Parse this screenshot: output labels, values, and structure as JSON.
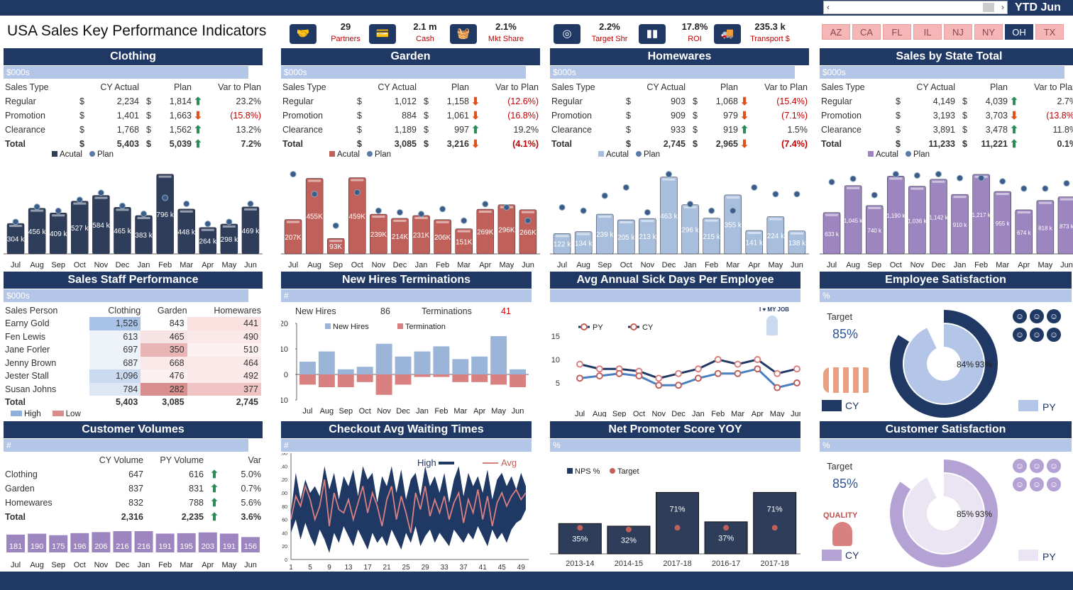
{
  "title": "USA Sales Key Performance Indicators",
  "period": "YTD Jun",
  "kpis": [
    {
      "value": "29",
      "label": "Partners",
      "icon": "handshake-icon"
    },
    {
      "value": "2.1 m",
      "label": "Cash",
      "icon": "bank-card-icon"
    },
    {
      "value": "2.1%",
      "label": "Mkt Share",
      "icon": "basket-icon"
    },
    {
      "value": "2.2%",
      "label": "Target Shr",
      "icon": "target-icon"
    },
    {
      "value": "17.8%",
      "label": "ROI",
      "icon": "bar-icon"
    },
    {
      "value": "235.3 k",
      "label": "Transport $",
      "icon": "truck-icon"
    }
  ],
  "states": [
    "AZ",
    "CA",
    "FL",
    "IL",
    "NJ",
    "NY",
    "OH",
    "TX"
  ],
  "selected_state": "OH",
  "months": [
    "Jul",
    "Aug",
    "Sep",
    "Oct",
    "Nov",
    "Dec",
    "Jan",
    "Feb",
    "Mar",
    "Apr",
    "May",
    "Jun"
  ],
  "unit_k": "$000s",
  "unit_n": "#",
  "unit_p": "%",
  "sales_cols": {
    "type": "Sales Type",
    "actual": "CY Actual",
    "plan": "Plan",
    "var": "Var to Plan",
    "cur": "$"
  },
  "legend": {
    "actual": "Acutal",
    "plan": "Plan"
  },
  "panels": [
    {
      "name": "Clothing",
      "color": "#2e3d5a",
      "rows": [
        {
          "t": "Regular",
          "a": "2,234",
          "p": "1,814",
          "v": "23.2%",
          "d": "up"
        },
        {
          "t": "Promotion",
          "a": "1,401",
          "p": "1,663",
          "v": "(15.8%)",
          "d": "dn"
        },
        {
          "t": "Clearance",
          "a": "1,768",
          "p": "1,562",
          "v": "13.2%",
          "d": "up"
        },
        {
          "t": "Total",
          "a": "5,403",
          "p": "5,039",
          "v": "7.2%",
          "d": "up"
        }
      ],
      "bars": [
        304,
        456,
        409,
        527,
        584,
        465,
        383,
        796,
        448,
        264,
        298,
        469
      ],
      "plan": [
        320,
        470,
        430,
        540,
        610,
        480,
        400,
        560,
        500,
        300,
        320,
        500
      ],
      "labels": [
        "304 k",
        "456 k",
        "409 k",
        "527 k",
        "584 k",
        "465 k",
        "383 k",
        "796 k",
        "448 k",
        "264 k",
        "298 k",
        "469 k"
      ]
    },
    {
      "name": "Garden",
      "color": "#c0605a",
      "rows": [
        {
          "t": "Regular",
          "a": "1,012",
          "p": "1,158",
          "v": "(12.6%)",
          "d": "dn"
        },
        {
          "t": "Promotion",
          "a": "884",
          "p": "1,061",
          "v": "(16.8%)",
          "d": "dn"
        },
        {
          "t": "Clearance",
          "a": "1,189",
          "p": "997",
          "v": "19.2%",
          "d": "up"
        },
        {
          "t": "Total",
          "a": "3,085",
          "p": "3,216",
          "v": "(4.1%)",
          "d": "dn"
        }
      ],
      "bars": [
        207,
        455,
        93,
        459,
        239,
        214,
        231,
        206,
        151,
        269,
        296,
        266
      ],
      "plan": [
        480,
        360,
        170,
        370,
        260,
        250,
        240,
        270,
        200,
        300,
        280,
        200
      ],
      "labels": [
        "207K",
        "455K",
        "93K",
        "459K",
        "239K",
        "214K",
        "231K",
        "206K",
        "151K",
        "269K",
        "296K",
        "266K"
      ]
    },
    {
      "name": "Homewares",
      "color": "#a7bfdc",
      "rows": [
        {
          "t": "Regular",
          "a": "903",
          "p": "1,068",
          "v": "(15.4%)",
          "d": "dn"
        },
        {
          "t": "Promotion",
          "a": "909",
          "p": "979",
          "v": "(7.1%)",
          "d": "dn"
        },
        {
          "t": "Clearance",
          "a": "933",
          "p": "919",
          "v": "1.5%",
          "d": "up"
        },
        {
          "t": "Total",
          "a": "2,745",
          "p": "2,965",
          "v": "(7.4%)",
          "d": "dn"
        }
      ],
      "bars": [
        122,
        134,
        239,
        205,
        213,
        463,
        296,
        215,
        355,
        141,
        224,
        138
      ],
      "plan": [
        280,
        260,
        350,
        400,
        250,
        480,
        300,
        260,
        260,
        400,
        360,
        360
      ],
      "labels": [
        "122 k",
        "134 k",
        "239 k",
        "205 k",
        "213 k",
        "463 k",
        "296 k",
        "215 k",
        "355 k",
        "141 k",
        "224 k",
        "138 k"
      ]
    },
    {
      "name": "Sales by State Total",
      "color": "#9d86bf",
      "rows": [
        {
          "t": "Regular",
          "a": "4,149",
          "p": "4,039",
          "v": "2.7%",
          "d": "up"
        },
        {
          "t": "Promotion",
          "a": "3,193",
          "p": "3,703",
          "v": "(13.8%)",
          "d": "dn"
        },
        {
          "t": "Clearance",
          "a": "3,891",
          "p": "3,478",
          "v": "11.8%",
          "d": "up"
        },
        {
          "t": "Total",
          "a": "11,233",
          "p": "11,221",
          "v": "0.1%",
          "d": "up"
        }
      ],
      "bars": [
        633,
        1045,
        740,
        1190,
        1036,
        1142,
        910,
        1217,
        955,
        674,
        818,
        873
      ],
      "plan": [
        1100,
        1150,
        900,
        1220,
        1200,
        1220,
        1160,
        1160,
        1110,
        1000,
        1000,
        1080
      ],
      "labels": [
        "633 k",
        "1,045 k",
        "740 k",
        "1,190 k",
        "1,036 k",
        "1,142 k",
        "910 k",
        "1,217 k",
        "955 k",
        "674 k",
        "818 k",
        "873 k"
      ]
    }
  ],
  "staff": {
    "title": "Sales Staff Performance",
    "cols": [
      "Sales Person",
      "Clothing",
      "Garden",
      "Homewares"
    ],
    "rows": [
      [
        "Earny Gold",
        "1,526",
        "843",
        "441"
      ],
      [
        "Fen Lewis",
        "613",
        "465",
        "490"
      ],
      [
        "Jane Forler",
        "697",
        "350",
        "510"
      ],
      [
        "Jenny Brown",
        "687",
        "668",
        "464"
      ],
      [
        "Jester Stall",
        "1,096",
        "476",
        "492"
      ],
      [
        "Susan Johns",
        "784",
        "282",
        "377"
      ]
    ],
    "total": [
      "Total",
      "5,403",
      "3,085",
      "2,745"
    ],
    "high": "High",
    "low": "Low"
  },
  "hires": {
    "title": "New Hires Terminations",
    "new_label": "New Hires",
    "new_value": "86",
    "term_label": "Terminations",
    "term_value": "41",
    "legend_new": "New Hires",
    "legend_term": "Termination",
    "yticks": [
      "20",
      "10",
      "0",
      "-10"
    ],
    "new": [
      5,
      9,
      2,
      3,
      12,
      7,
      9,
      11,
      6,
      7,
      15,
      2
    ],
    "term": [
      -4,
      -5,
      -5,
      -3,
      -8,
      -4,
      -1,
      -1,
      -3,
      -3,
      -4,
      -5
    ]
  },
  "sick": {
    "title": "Avg Annual Sick Days Per Employee",
    "yticks": [
      "15",
      "10",
      "5"
    ],
    "legend_py": "PY",
    "legend_cy": "CY",
    "badge": "I ♥ MY JOB",
    "py": [
      9,
      8,
      8,
      7.5,
      6,
      7,
      8,
      10,
      9,
      10,
      7,
      8
    ],
    "cy": [
      6,
      6.5,
      7,
      6.5,
      4.5,
      4.5,
      6,
      7,
      7,
      8,
      4,
      5
    ]
  },
  "emp": {
    "title": "Employee Satisfaction",
    "target_label": "Target",
    "target": "85%",
    "cy_pct": "84%",
    "py_pct": "93%",
    "cy": "CY",
    "py": "PY",
    "cy_val": 84,
    "py_val": 93
  },
  "cust_vol": {
    "title": "Customer Volumes",
    "cols": [
      "CY Volume",
      "PY Volume",
      "Var"
    ],
    "rows": [
      [
        "Clothing",
        "647",
        "616",
        "5.0%"
      ],
      [
        "Garden",
        "837",
        "831",
        "0.7%"
      ],
      [
        "Homewares",
        "832",
        "788",
        "5.6%"
      ],
      [
        "Total",
        "2,316",
        "2,235",
        "3.6%"
      ]
    ],
    "bars": [
      181,
      190,
      175,
      196,
      206,
      216,
      216,
      191,
      195,
      203,
      191,
      156
    ]
  },
  "checkout": {
    "title": "Checkout Avg Waiting Times",
    "legend_high": "High",
    "legend_avg": "Avg",
    "yticks": [
      "160",
      "140",
      "120",
      "100",
      "80",
      "60",
      "40",
      "20",
      "0"
    ],
    "xticks": [
      "1",
      "5",
      "9",
      "13",
      "17",
      "21",
      "25",
      "29",
      "33",
      "37",
      "41",
      "45",
      "49"
    ],
    "high": [
      70,
      130,
      90,
      120,
      100,
      110,
      95,
      140,
      105,
      130,
      90,
      125,
      110,
      135,
      95,
      140,
      120,
      130,
      85,
      125,
      110,
      140,
      100,
      135,
      90,
      120,
      130,
      95,
      140,
      110,
      125,
      100,
      130,
      85,
      120,
      140,
      95,
      130,
      110,
      125,
      100,
      135,
      90,
      120,
      130,
      110,
      125,
      105,
      130,
      110
    ],
    "low": [
      40,
      60,
      30,
      55,
      35,
      20,
      45,
      30,
      10,
      40,
      25,
      50,
      35,
      20,
      45,
      30,
      15,
      40,
      25,
      35,
      20,
      45,
      30,
      15,
      40,
      25,
      50,
      20,
      35,
      45,
      25,
      40,
      30,
      20,
      45,
      35,
      25,
      40,
      30,
      50,
      35,
      20,
      45,
      30,
      40,
      25,
      45,
      55,
      60,
      75
    ],
    "avg": [
      60,
      95,
      80,
      110,
      90,
      60,
      80,
      120,
      50,
      100,
      75,
      70,
      90,
      60,
      85,
      110,
      70,
      100,
      80,
      50,
      90,
      110,
      60,
      95,
      70,
      40,
      100,
      75,
      110,
      65,
      90,
      70,
      95,
      60,
      85,
      100,
      55,
      90,
      70,
      105,
      60,
      95,
      50,
      85,
      100,
      80,
      95,
      105,
      90,
      100
    ]
  },
  "nps": {
    "title": "Net Promoter Score YOY",
    "legend_nps": "NPS %",
    "legend_target": "Target",
    "years": [
      "2013-14",
      "2014-15",
      "2017-18",
      "2016-17",
      "2017-18"
    ],
    "values": [
      35,
      32,
      71,
      37,
      71
    ],
    "labels": [
      "35%",
      "32%",
      "71%",
      "37%",
      "71%"
    ],
    "target": [
      40,
      38,
      40,
      40,
      40
    ]
  },
  "cust_sat": {
    "title": "Customer Satisfaction",
    "target_label": "Target",
    "target": "85%",
    "cy_pct": "85%",
    "py_pct": "93%",
    "cy": "CY",
    "py": "PY",
    "badge": "QUALITY",
    "cy_val": 85,
    "py_val": 93
  }
}
